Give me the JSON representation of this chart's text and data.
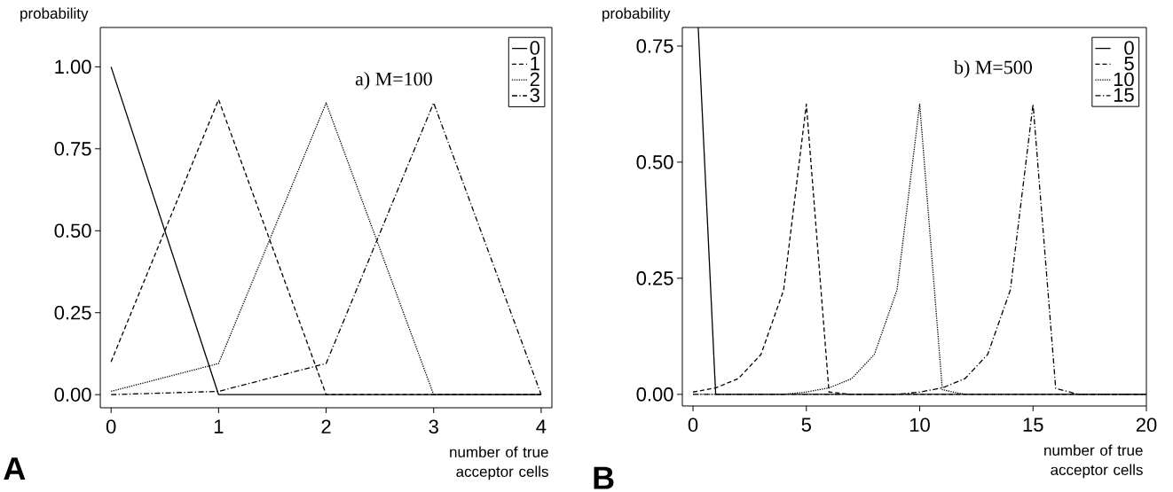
{
  "chart_data": [
    {
      "type": "line",
      "xlabel": "number of true acceptor cells",
      "ylabel": "probability",
      "annotations": [
        "a) M=100",
        "A"
      ],
      "x": [
        0,
        1,
        2,
        3,
        4
      ],
      "xlim": [
        -0.1,
        4.1
      ],
      "xticks": [
        0,
        1,
        2,
        3,
        4
      ],
      "ylim": [
        -0.04,
        1.12
      ],
      "yticks": [
        {
          "value": 0,
          "label": "0.00"
        },
        {
          "value": 0.25,
          "label": "0.25"
        },
        {
          "value": 0.5,
          "label": "0.50"
        },
        {
          "value": 0.75,
          "label": "0.75"
        },
        {
          "value": 1,
          "label": "1.00"
        }
      ],
      "legend": "top right",
      "grid": false,
      "marker": "none",
      "series": [
        {
          "name": "0",
          "color": "#000000",
          "line_style": "solid",
          "values": [
            1,
            0,
            0,
            0,
            0
          ]
        },
        {
          "name": "1",
          "color": "#000000",
          "line_style": "dashed",
          "values": [
            0.1,
            0.9,
            0,
            0,
            0
          ]
        },
        {
          "name": "2",
          "color": "#000000",
          "line_style": "dotted",
          "values": [
            0.01,
            0.095,
            0.89,
            0,
            0
          ]
        },
        {
          "name": "3",
          "color": "#000000",
          "line_style": "dashdot",
          "values": [
            0,
            0.01,
            0.095,
            0.89,
            0
          ]
        }
      ]
    },
    {
      "type": "line",
      "xlabel": "number of true acceptor cells",
      "ylabel": "probability",
      "annotations": [
        "b) M=500",
        "B"
      ],
      "x": [
        0,
        1,
        2,
        3,
        4,
        5,
        6,
        7,
        8,
        9,
        10,
        11,
        12,
        13,
        14,
        15,
        16,
        17,
        18,
        19,
        20
      ],
      "xlim": [
        -0.47,
        20
      ],
      "xticks": [
        0,
        5,
        10,
        15,
        20
      ],
      "ylim": [
        -0.025,
        0.79
      ],
      "yticks": [
        {
          "value": 0,
          "label": "0.00"
        },
        {
          "value": 0.25,
          "label": "0.25"
        },
        {
          "value": 0.5,
          "label": "0.50"
        },
        {
          "value": 0.75,
          "label": "0.75"
        }
      ],
      "legend": "top right",
      "grid": false,
      "marker": "none",
      "series": [
        {
          "name": "0",
          "color": "#000000",
          "line_style": "solid",
          "x": [
            0.23,
            1,
            2,
            3,
            4,
            5,
            6,
            7,
            8,
            9,
            10,
            11,
            12,
            13,
            14,
            15,
            16,
            17,
            18,
            19,
            20
          ],
          "values": [
            0.79,
            0,
            0,
            0,
            0,
            0,
            0,
            0,
            0,
            0,
            0,
            0,
            0,
            0,
            0,
            0,
            0,
            0,
            0,
            0,
            0
          ]
        },
        {
          "name": "5",
          "color": "#000000",
          "line_style": "dashed",
          "values": [
            0.005,
            0.014,
            0.034,
            0.086,
            0.225,
            0.625,
            0.005,
            0,
            0,
            0,
            0,
            0,
            0,
            0,
            0,
            0,
            0,
            0,
            0,
            0,
            0
          ]
        },
        {
          "name": "10",
          "color": "#000000",
          "line_style": "dotted",
          "values": [
            0,
            0,
            0,
            0,
            0,
            0.005,
            0.014,
            0.034,
            0.086,
            0.225,
            0.625,
            0.01,
            0,
            0,
            0,
            0,
            0,
            0,
            0,
            0,
            0
          ]
        },
        {
          "name": "15",
          "color": "#000000",
          "line_style": "dashdot",
          "values": [
            0,
            0,
            0,
            0,
            0,
            0,
            0,
            0,
            0,
            0,
            0.005,
            0.014,
            0.034,
            0.086,
            0.225,
            0.625,
            0.013,
            0,
            0,
            0,
            0
          ]
        }
      ]
    }
  ]
}
